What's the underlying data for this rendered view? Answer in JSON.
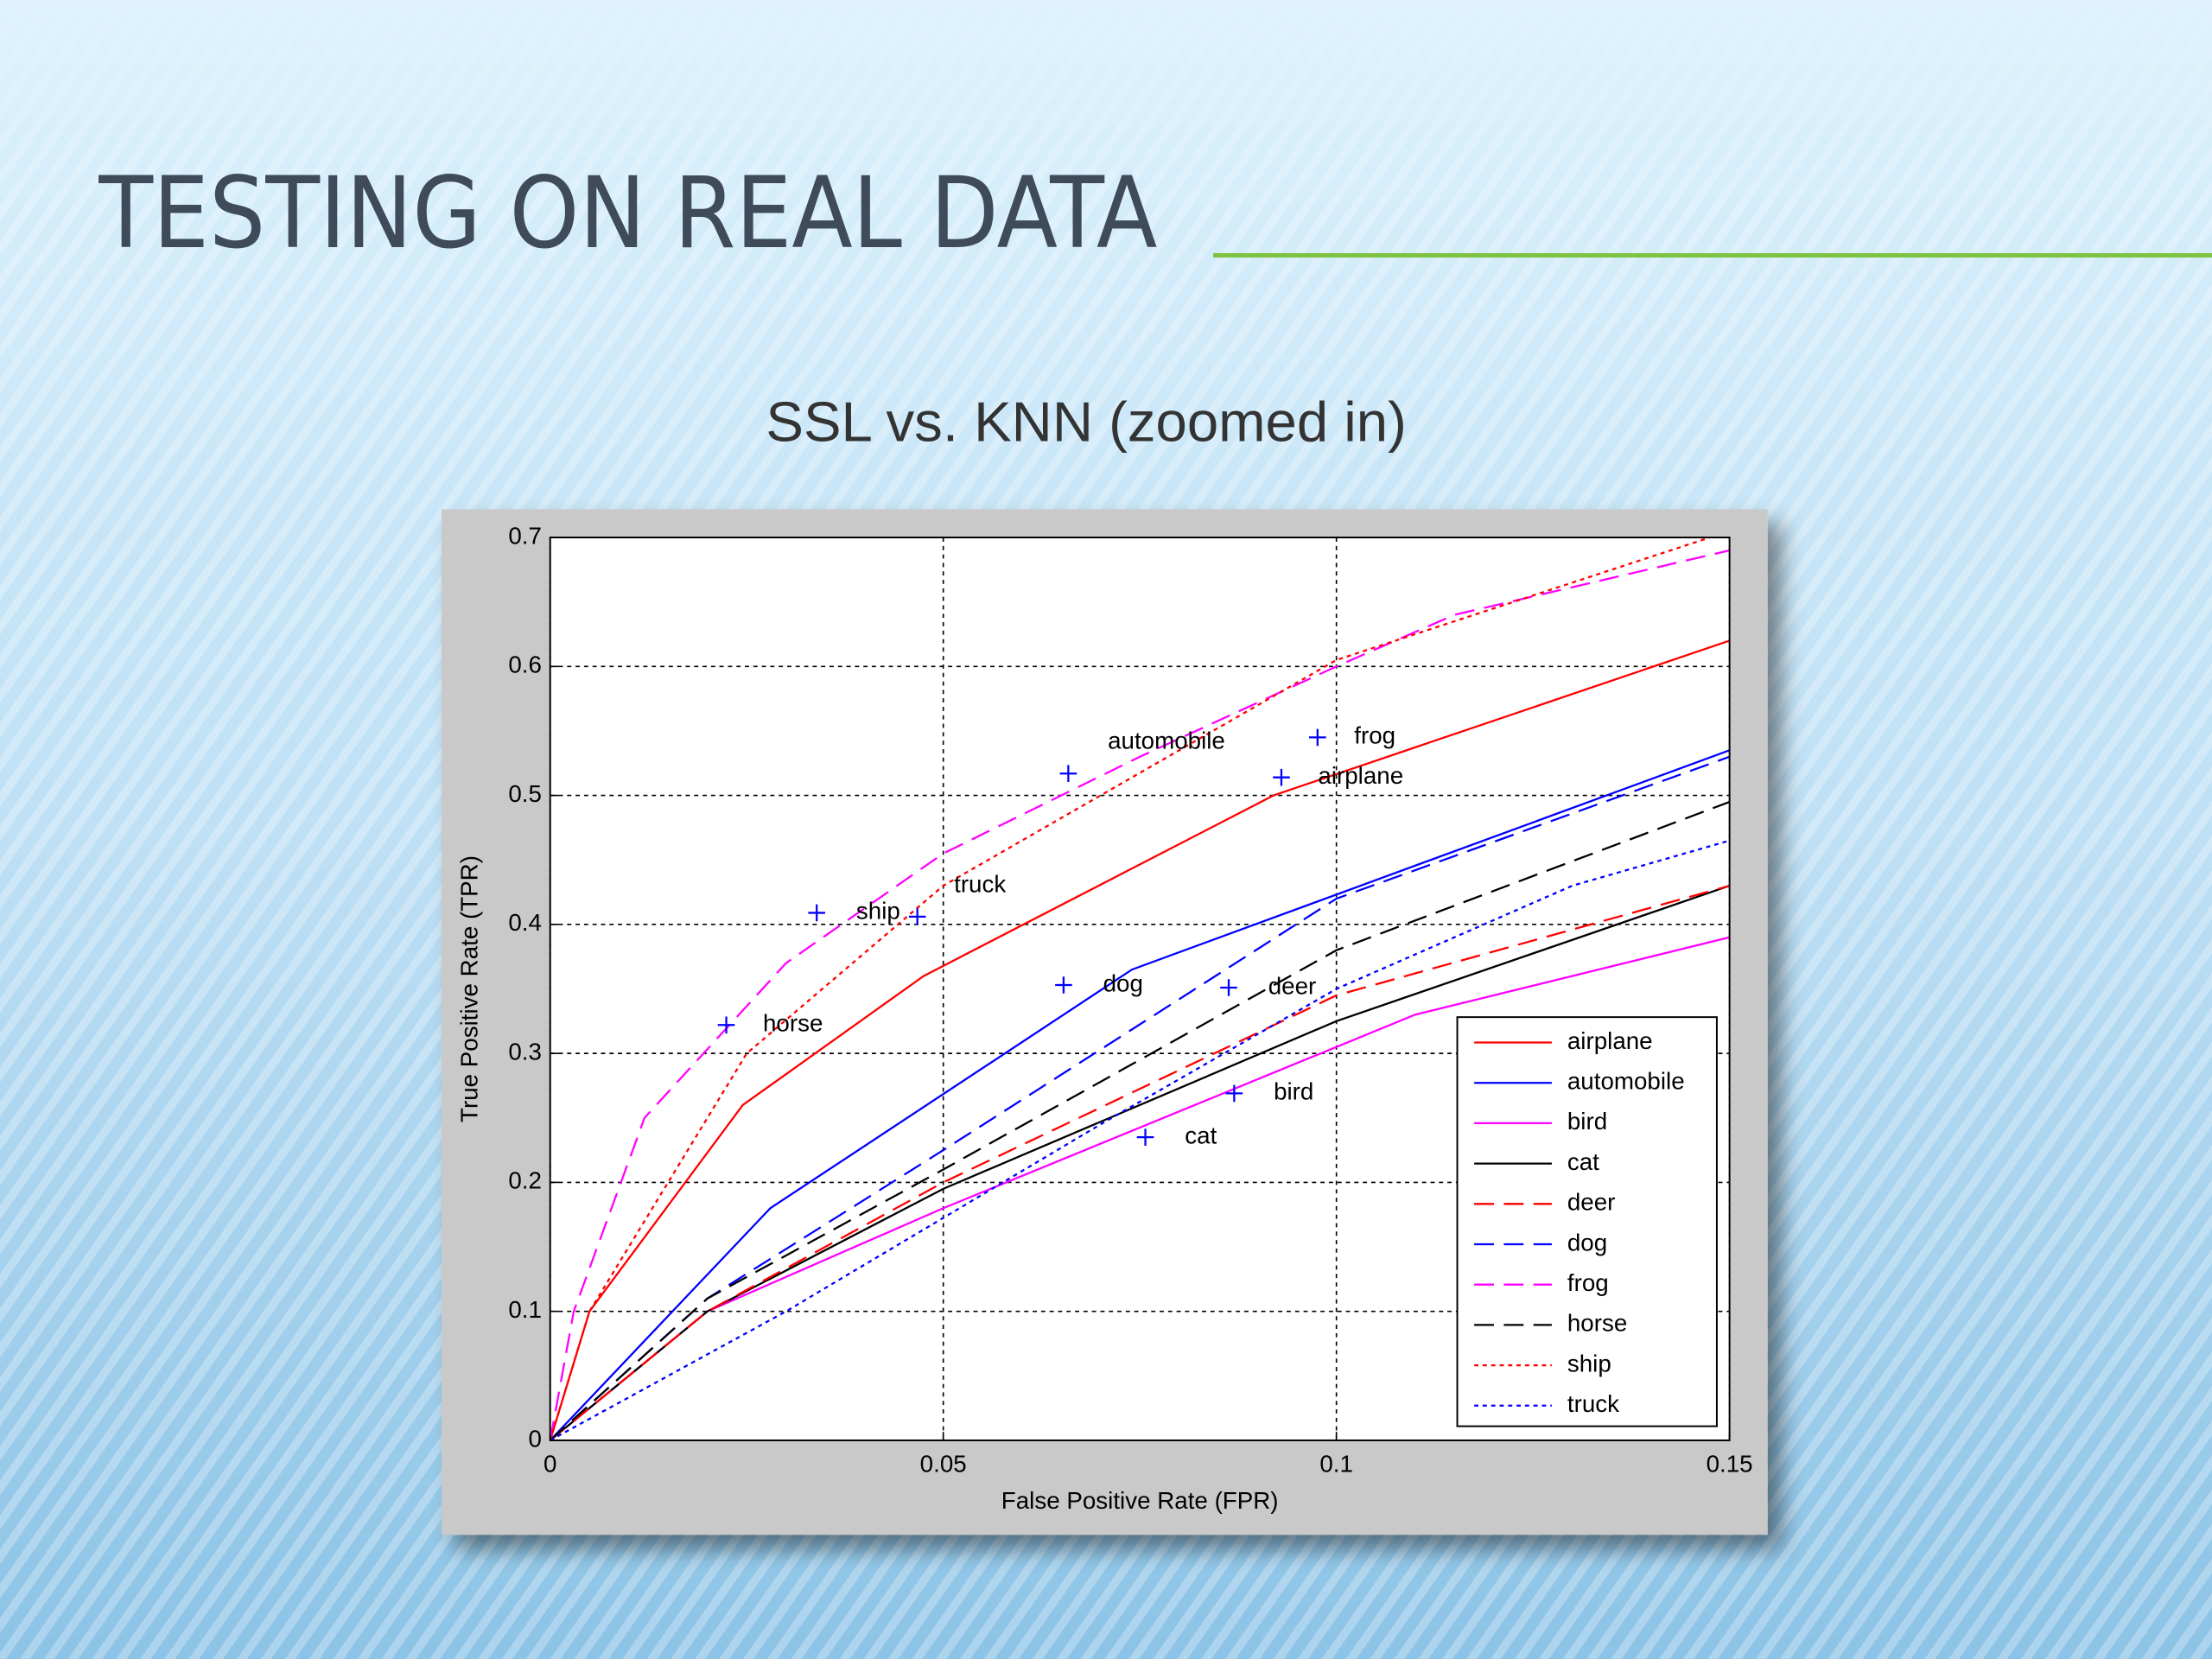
{
  "header": {
    "title": "TESTING ON REAL DATA"
  },
  "chart_data": {
    "type": "line",
    "title": "SSL vs. KNN (zoomed in)",
    "x_label": "False Positive Rate (FPR)",
    "y_label": "True Positive Rate (TPR)",
    "xlim": [
      0,
      0.15
    ],
    "ylim": [
      0,
      0.7
    ],
    "xticks": [
      0,
      0.05,
      0.1,
      0.15
    ],
    "yticks": [
      0,
      0.1,
      0.2,
      0.3,
      0.4,
      0.5,
      0.6,
      0.7
    ],
    "grid": true,
    "legend": "lower right",
    "series": [
      {
        "name": "airplane",
        "color": "#ff0000",
        "dash": "solid",
        "x": [
          0,
          0.005,
          0.0245,
          0.0475,
          0.092,
          0.15
        ],
        "values": [
          0,
          0.1,
          0.26,
          0.36,
          0.5,
          0.62
        ]
      },
      {
        "name": "automobile",
        "color": "#0000ff",
        "dash": "solid",
        "x": [
          0,
          0.028,
          0.074,
          0.15
        ],
        "values": [
          0,
          0.18,
          0.365,
          0.535
        ]
      },
      {
        "name": "bird",
        "color": "#ff00ff",
        "dash": "solid",
        "x": [
          0,
          0.02,
          0.05,
          0.11,
          0.15
        ],
        "values": [
          0,
          0.1,
          0.18,
          0.33,
          0.39
        ]
      },
      {
        "name": "cat",
        "color": "#000000",
        "dash": "solid",
        "x": [
          0,
          0.02,
          0.05,
          0.1,
          0.15
        ],
        "values": [
          0,
          0.1,
          0.195,
          0.325,
          0.43
        ]
      },
      {
        "name": "deer",
        "color": "#ff0000",
        "dash": "dashed",
        "x": [
          0,
          0.02,
          0.05,
          0.1,
          0.15
        ],
        "values": [
          0,
          0.1,
          0.2,
          0.345,
          0.43
        ]
      },
      {
        "name": "dog",
        "color": "#0000ff",
        "dash": "dashed",
        "x": [
          0,
          0.02,
          0.05,
          0.1,
          0.15
        ],
        "values": [
          0,
          0.11,
          0.225,
          0.42,
          0.53
        ]
      },
      {
        "name": "frog",
        "color": "#ff00ff",
        "dash": "dashed",
        "x": [
          0,
          0.003,
          0.012,
          0.03,
          0.05,
          0.075,
          0.1,
          0.115,
          0.15
        ],
        "values": [
          0,
          0.1,
          0.25,
          0.37,
          0.455,
          0.53,
          0.6,
          0.64,
          0.69
        ]
      },
      {
        "name": "horse",
        "color": "#000000",
        "dash": "dashed",
        "x": [
          0,
          0.02,
          0.05,
          0.1,
          0.15
        ],
        "values": [
          0,
          0.11,
          0.21,
          0.38,
          0.495
        ]
      },
      {
        "name": "ship",
        "color": "#ff0000",
        "dash": "dotted",
        "x": [
          0,
          0.005,
          0.025,
          0.05,
          0.1,
          0.15
        ],
        "values": [
          0,
          0.1,
          0.3,
          0.43,
          0.605,
          0.705
        ]
      },
      {
        "name": "truck",
        "color": "#0000ff",
        "dash": "dotted",
        "x": [
          0,
          0.03,
          0.07,
          0.1,
          0.13,
          0.15
        ],
        "values": [
          0,
          0.1,
          0.245,
          0.35,
          0.43,
          0.465
        ]
      }
    ],
    "points": [
      {
        "label": "automobile",
        "x": 0.0659,
        "y": 0.517
      },
      {
        "label": "frog",
        "x": 0.0976,
        "y": 0.545
      },
      {
        "label": "airplane",
        "x": 0.093,
        "y": 0.514
      },
      {
        "label": "truck",
        "x": 0.0467,
        "y": 0.406
      },
      {
        "label": "ship",
        "x": 0.0339,
        "y": 0.409
      },
      {
        "label": "horse",
        "x": 0.0224,
        "y": 0.322
      },
      {
        "label": "dog",
        "x": 0.0653,
        "y": 0.353
      },
      {
        "label": "deer",
        "x": 0.0863,
        "y": 0.351
      },
      {
        "label": "bird",
        "x": 0.087,
        "y": 0.269
      },
      {
        "label": "cat",
        "x": 0.0757,
        "y": 0.235
      }
    ],
    "points_color": "#0000ff"
  }
}
